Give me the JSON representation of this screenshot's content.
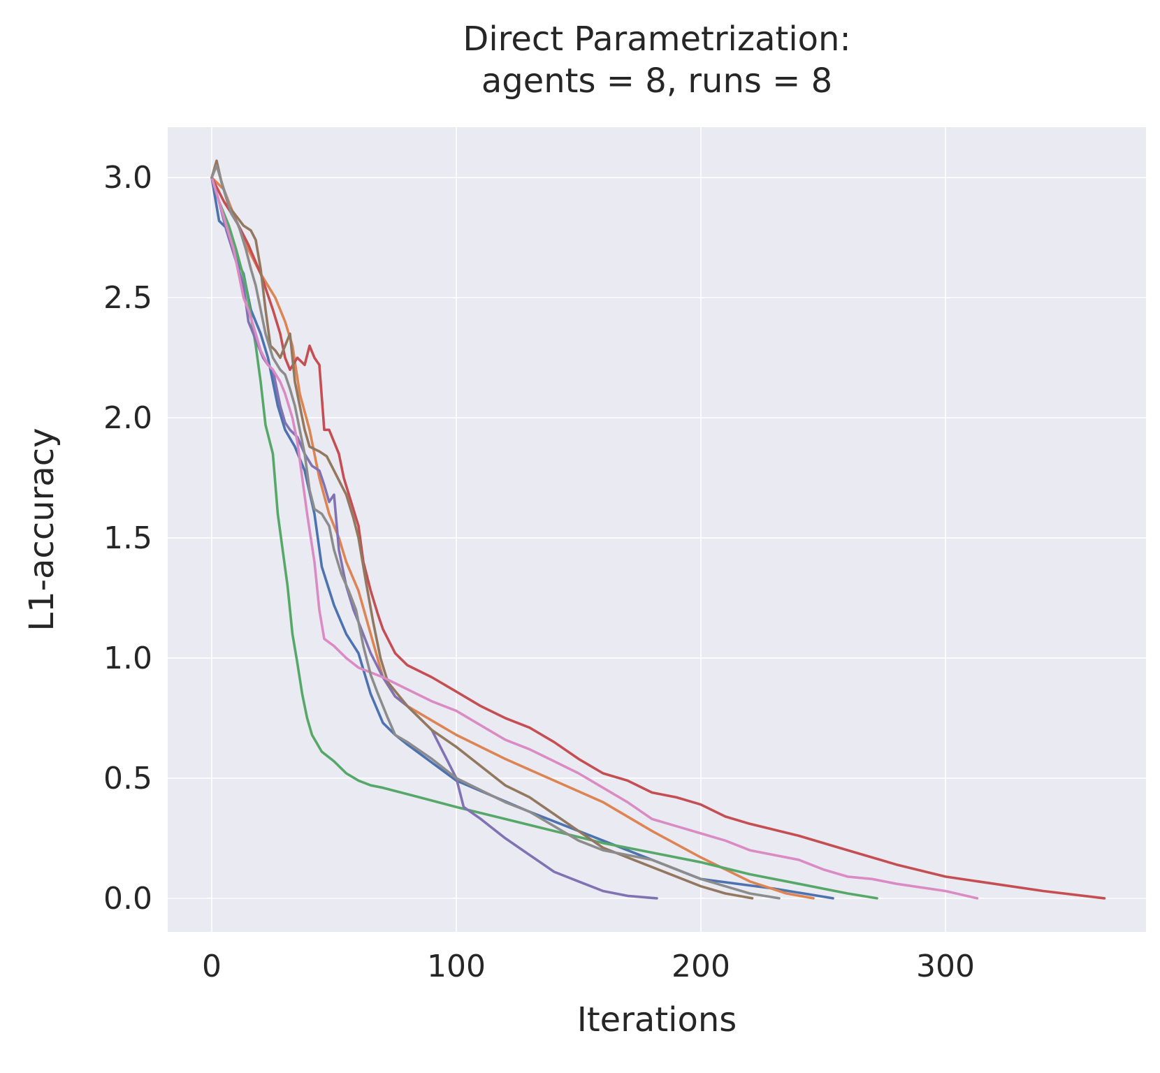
{
  "chart_data": {
    "type": "line",
    "title": "Direct Parametrization:",
    "subtitle": "agents = 8, runs = 8",
    "xlabel": "Iterations",
    "ylabel": "L1-accuracy",
    "xlim": [
      -18,
      382
    ],
    "ylim": [
      -0.14,
      3.21
    ],
    "xticks": [
      0,
      100,
      200,
      300
    ],
    "xtick_labels": [
      "0",
      "100",
      "200",
      "300"
    ],
    "yticks": [
      0.0,
      0.5,
      1.0,
      1.5,
      2.0,
      2.5,
      3.0
    ],
    "ytick_labels": [
      "0.0",
      "0.5",
      "1.0",
      "1.5",
      "2.0",
      "2.5",
      "3.0"
    ],
    "grid": true,
    "background": "#EAEAF2",
    "series": [
      {
        "color": "#4C72B0",
        "points": [
          [
            0,
            3.0
          ],
          [
            3,
            2.82
          ],
          [
            7,
            2.78
          ],
          [
            10,
            2.66
          ],
          [
            13,
            2.6
          ],
          [
            16,
            2.45
          ],
          [
            20,
            2.35
          ],
          [
            23,
            2.25
          ],
          [
            27,
            2.05
          ],
          [
            30,
            1.95
          ],
          [
            34,
            1.88
          ],
          [
            38,
            1.78
          ],
          [
            42,
            1.6
          ],
          [
            45,
            1.38
          ],
          [
            50,
            1.22
          ],
          [
            55,
            1.1
          ],
          [
            60,
            1.02
          ],
          [
            65,
            0.85
          ],
          [
            70,
            0.73
          ],
          [
            75,
            0.68
          ],
          [
            80,
            0.64
          ],
          [
            100,
            0.49
          ],
          [
            130,
            0.36
          ],
          [
            160,
            0.24
          ],
          [
            200,
            0.08
          ],
          [
            230,
            0.04
          ],
          [
            254,
            0.0
          ]
        ]
      },
      {
        "color": "#DD8452",
        "points": [
          [
            0,
            3.0
          ],
          [
            5,
            2.95
          ],
          [
            10,
            2.82
          ],
          [
            15,
            2.7
          ],
          [
            20,
            2.6
          ],
          [
            23,
            2.55
          ],
          [
            26,
            2.5
          ],
          [
            30,
            2.4
          ],
          [
            33,
            2.3
          ],
          [
            36,
            2.1
          ],
          [
            40,
            1.95
          ],
          [
            44,
            1.75
          ],
          [
            48,
            1.6
          ],
          [
            52,
            1.5
          ],
          [
            55,
            1.4
          ],
          [
            60,
            1.28
          ],
          [
            65,
            1.1
          ],
          [
            70,
            0.92
          ],
          [
            75,
            0.84
          ],
          [
            80,
            0.8
          ],
          [
            90,
            0.74
          ],
          [
            100,
            0.68
          ],
          [
            120,
            0.58
          ],
          [
            140,
            0.49
          ],
          [
            160,
            0.4
          ],
          [
            180,
            0.28
          ],
          [
            200,
            0.17
          ],
          [
            220,
            0.07
          ],
          [
            235,
            0.02
          ],
          [
            246,
            0.0
          ]
        ]
      },
      {
        "color": "#55A868",
        "points": [
          [
            0,
            3.0
          ],
          [
            3,
            2.9
          ],
          [
            7,
            2.8
          ],
          [
            10,
            2.7
          ],
          [
            14,
            2.55
          ],
          [
            18,
            2.3
          ],
          [
            20,
            2.15
          ],
          [
            22,
            1.97
          ],
          [
            25,
            1.85
          ],
          [
            27,
            1.6
          ],
          [
            29,
            1.45
          ],
          [
            31,
            1.3
          ],
          [
            33,
            1.1
          ],
          [
            35,
            0.98
          ],
          [
            37,
            0.85
          ],
          [
            39,
            0.75
          ],
          [
            41,
            0.68
          ],
          [
            45,
            0.61
          ],
          [
            50,
            0.57
          ],
          [
            55,
            0.52
          ],
          [
            60,
            0.49
          ],
          [
            65,
            0.47
          ],
          [
            70,
            0.46
          ],
          [
            85,
            0.42
          ],
          [
            100,
            0.38
          ],
          [
            120,
            0.33
          ],
          [
            140,
            0.28
          ],
          [
            160,
            0.23
          ],
          [
            180,
            0.19
          ],
          [
            200,
            0.15
          ],
          [
            220,
            0.1
          ],
          [
            240,
            0.06
          ],
          [
            260,
            0.02
          ],
          [
            272,
            0.0
          ]
        ]
      },
      {
        "color": "#C44E52",
        "points": [
          [
            0,
            3.0
          ],
          [
            5,
            2.9
          ],
          [
            10,
            2.82
          ],
          [
            15,
            2.72
          ],
          [
            20,
            2.6
          ],
          [
            25,
            2.45
          ],
          [
            28,
            2.35
          ],
          [
            30,
            2.25
          ],
          [
            32,
            2.2
          ],
          [
            35,
            2.25
          ],
          [
            38,
            2.22
          ],
          [
            40,
            2.3
          ],
          [
            42,
            2.25
          ],
          [
            44,
            2.22
          ],
          [
            46,
            1.95
          ],
          [
            48,
            1.95
          ],
          [
            50,
            1.9
          ],
          [
            52,
            1.85
          ],
          [
            54,
            1.75
          ],
          [
            57,
            1.65
          ],
          [
            60,
            1.55
          ],
          [
            62,
            1.4
          ],
          [
            65,
            1.28
          ],
          [
            68,
            1.18
          ],
          [
            70,
            1.12
          ],
          [
            75,
            1.02
          ],
          [
            80,
            0.97
          ],
          [
            90,
            0.92
          ],
          [
            100,
            0.86
          ],
          [
            110,
            0.8
          ],
          [
            120,
            0.75
          ],
          [
            130,
            0.71
          ],
          [
            140,
            0.65
          ],
          [
            150,
            0.58
          ],
          [
            160,
            0.52
          ],
          [
            170,
            0.49
          ],
          [
            180,
            0.44
          ],
          [
            190,
            0.42
          ],
          [
            200,
            0.39
          ],
          [
            210,
            0.34
          ],
          [
            220,
            0.31
          ],
          [
            240,
            0.26
          ],
          [
            260,
            0.2
          ],
          [
            280,
            0.14
          ],
          [
            300,
            0.09
          ],
          [
            320,
            0.06
          ],
          [
            340,
            0.03
          ],
          [
            365,
            0.0
          ]
        ]
      },
      {
        "color": "#8172B3",
        "points": [
          [
            0,
            3.0
          ],
          [
            3,
            2.9
          ],
          [
            6,
            2.78
          ],
          [
            10,
            2.65
          ],
          [
            13,
            2.55
          ],
          [
            15,
            2.4
          ],
          [
            17,
            2.35
          ],
          [
            19,
            2.3
          ],
          [
            21,
            2.25
          ],
          [
            23,
            2.22
          ],
          [
            25,
            2.2
          ],
          [
            28,
            2.05
          ],
          [
            30,
            1.98
          ],
          [
            32,
            1.95
          ],
          [
            35,
            1.92
          ],
          [
            38,
            1.85
          ],
          [
            41,
            1.8
          ],
          [
            44,
            1.78
          ],
          [
            46,
            1.72
          ],
          [
            48,
            1.65
          ],
          [
            50,
            1.68
          ],
          [
            52,
            1.45
          ],
          [
            55,
            1.3
          ],
          [
            58,
            1.2
          ],
          [
            60,
            1.15
          ],
          [
            65,
            1.02
          ],
          [
            70,
            0.92
          ],
          [
            75,
            0.84
          ],
          [
            80,
            0.8
          ],
          [
            90,
            0.7
          ],
          [
            95,
            0.6
          ],
          [
            100,
            0.5
          ],
          [
            103,
            0.38
          ],
          [
            110,
            0.33
          ],
          [
            120,
            0.25
          ],
          [
            130,
            0.18
          ],
          [
            140,
            0.11
          ],
          [
            150,
            0.07
          ],
          [
            160,
            0.03
          ],
          [
            170,
            0.01
          ],
          [
            182,
            0.0
          ]
        ]
      },
      {
        "color": "#937860",
        "points": [
          [
            0,
            3.0
          ],
          [
            2,
            3.07
          ],
          [
            4,
            2.98
          ],
          [
            7,
            2.88
          ],
          [
            10,
            2.84
          ],
          [
            13,
            2.8
          ],
          [
            16,
            2.78
          ],
          [
            18,
            2.74
          ],
          [
            20,
            2.62
          ],
          [
            22,
            2.45
          ],
          [
            24,
            2.3
          ],
          [
            26,
            2.28
          ],
          [
            28,
            2.25
          ],
          [
            30,
            2.3
          ],
          [
            32,
            2.35
          ],
          [
            34,
            2.15
          ],
          [
            36,
            2.05
          ],
          [
            38,
            1.95
          ],
          [
            40,
            1.88
          ],
          [
            44,
            1.86
          ],
          [
            47,
            1.84
          ],
          [
            50,
            1.78
          ],
          [
            53,
            1.72
          ],
          [
            55,
            1.68
          ],
          [
            58,
            1.58
          ],
          [
            60,
            1.5
          ],
          [
            63,
            1.32
          ],
          [
            66,
            1.15
          ],
          [
            69,
            1.0
          ],
          [
            72,
            0.9
          ],
          [
            76,
            0.85
          ],
          [
            80,
            0.8
          ],
          [
            90,
            0.7
          ],
          [
            100,
            0.63
          ],
          [
            110,
            0.55
          ],
          [
            120,
            0.47
          ],
          [
            130,
            0.42
          ],
          [
            140,
            0.35
          ],
          [
            150,
            0.28
          ],
          [
            160,
            0.21
          ],
          [
            170,
            0.17
          ],
          [
            180,
            0.13
          ],
          [
            190,
            0.09
          ],
          [
            200,
            0.05
          ],
          [
            210,
            0.02
          ],
          [
            221,
            0.0
          ]
        ]
      },
      {
        "color": "#DA8BC3",
        "points": [
          [
            0,
            3.0
          ],
          [
            3,
            2.9
          ],
          [
            6,
            2.8
          ],
          [
            9,
            2.7
          ],
          [
            11,
            2.6
          ],
          [
            13,
            2.5
          ],
          [
            15,
            2.45
          ],
          [
            18,
            2.35
          ],
          [
            20,
            2.28
          ],
          [
            23,
            2.22
          ],
          [
            25,
            2.2
          ],
          [
            28,
            2.15
          ],
          [
            30,
            2.1
          ],
          [
            33,
            2.0
          ],
          [
            35,
            1.9
          ],
          [
            37,
            1.75
          ],
          [
            39,
            1.6
          ],
          [
            42,
            1.4
          ],
          [
            44,
            1.2
          ],
          [
            46,
            1.08
          ],
          [
            50,
            1.05
          ],
          [
            55,
            1.0
          ],
          [
            60,
            0.96
          ],
          [
            70,
            0.92
          ],
          [
            80,
            0.87
          ],
          [
            90,
            0.82
          ],
          [
            100,
            0.78
          ],
          [
            110,
            0.72
          ],
          [
            120,
            0.66
          ],
          [
            130,
            0.62
          ],
          [
            140,
            0.57
          ],
          [
            150,
            0.52
          ],
          [
            160,
            0.46
          ],
          [
            170,
            0.4
          ],
          [
            180,
            0.33
          ],
          [
            190,
            0.3
          ],
          [
            200,
            0.27
          ],
          [
            210,
            0.24
          ],
          [
            220,
            0.2
          ],
          [
            230,
            0.18
          ],
          [
            240,
            0.16
          ],
          [
            250,
            0.12
          ],
          [
            260,
            0.09
          ],
          [
            270,
            0.08
          ],
          [
            280,
            0.06
          ],
          [
            300,
            0.03
          ],
          [
            313,
            0.0
          ]
        ]
      },
      {
        "color": "#8C8C8C",
        "points": [
          [
            0,
            3.0
          ],
          [
            2,
            3.05
          ],
          [
            5,
            2.95
          ],
          [
            8,
            2.85
          ],
          [
            11,
            2.8
          ],
          [
            14,
            2.7
          ],
          [
            16,
            2.62
          ],
          [
            18,
            2.55
          ],
          [
            20,
            2.45
          ],
          [
            22,
            2.35
          ],
          [
            25,
            2.25
          ],
          [
            28,
            2.2
          ],
          [
            30,
            2.18
          ],
          [
            32,
            2.12
          ],
          [
            34,
            2.05
          ],
          [
            36,
            1.95
          ],
          [
            38,
            1.85
          ],
          [
            40,
            1.7
          ],
          [
            42,
            1.62
          ],
          [
            45,
            1.6
          ],
          [
            48,
            1.55
          ],
          [
            50,
            1.45
          ],
          [
            53,
            1.35
          ],
          [
            56,
            1.28
          ],
          [
            59,
            1.2
          ],
          [
            62,
            1.05
          ],
          [
            65,
            0.93
          ],
          [
            68,
            0.85
          ],
          [
            72,
            0.75
          ],
          [
            75,
            0.68
          ],
          [
            80,
            0.65
          ],
          [
            90,
            0.58
          ],
          [
            100,
            0.5
          ],
          [
            110,
            0.45
          ],
          [
            120,
            0.4
          ],
          [
            130,
            0.36
          ],
          [
            140,
            0.3
          ],
          [
            150,
            0.24
          ],
          [
            160,
            0.2
          ],
          [
            170,
            0.18
          ],
          [
            180,
            0.16
          ],
          [
            190,
            0.12
          ],
          [
            200,
            0.08
          ],
          [
            210,
            0.05
          ],
          [
            220,
            0.02
          ],
          [
            232,
            0.0
          ]
        ]
      }
    ]
  }
}
